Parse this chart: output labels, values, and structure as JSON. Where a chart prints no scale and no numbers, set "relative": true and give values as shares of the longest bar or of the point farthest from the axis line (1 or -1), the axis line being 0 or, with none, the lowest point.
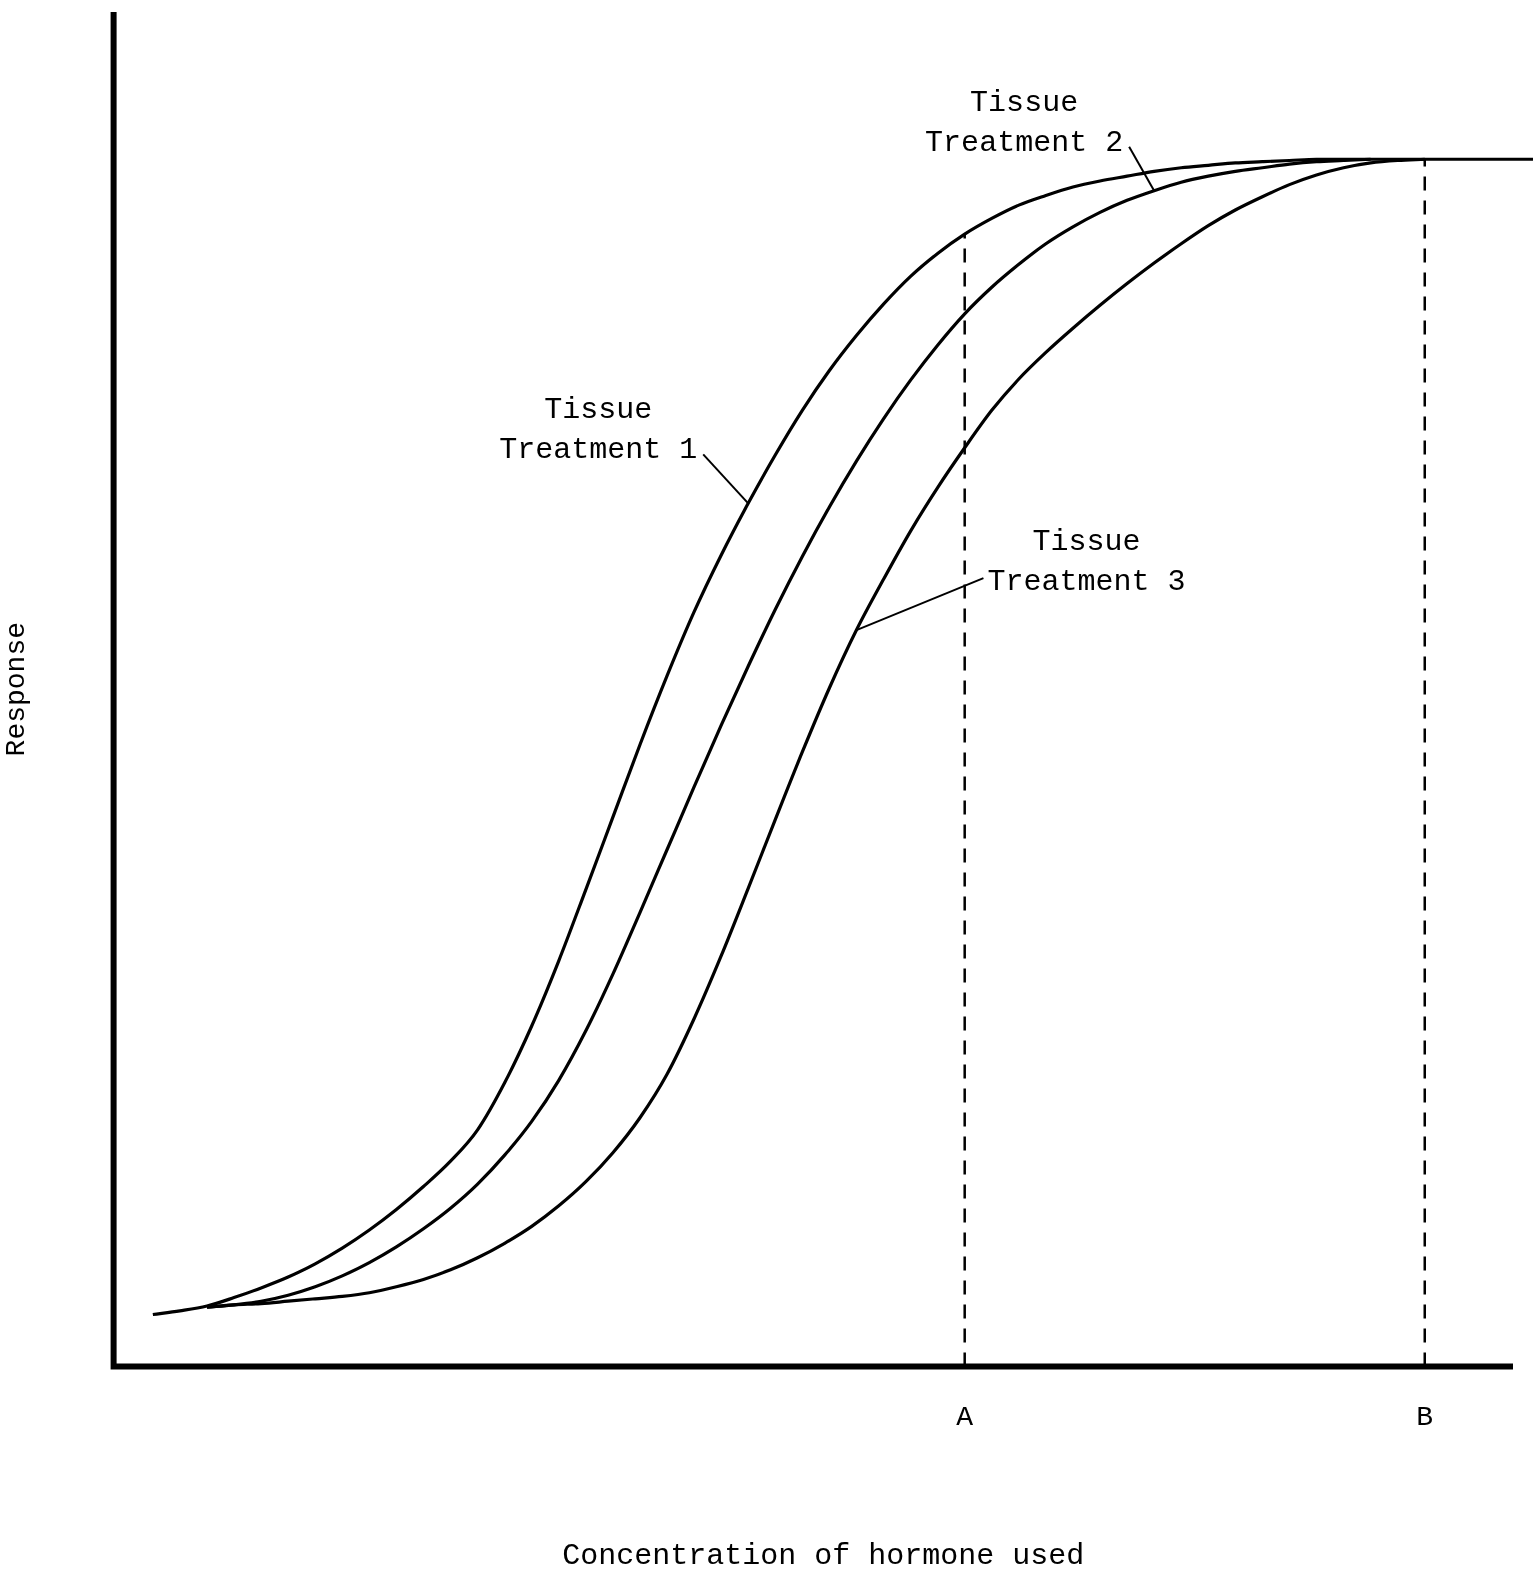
{
  "chart_data": {
    "type": "line",
    "relative": true,
    "xlabel": "Concentration of hormone used",
    "ylabel": "Response",
    "categories": [
      null,
      null,
      null,
      null,
      null,
      null,
      null,
      null,
      null,
      null,
      null,
      null,
      null,
      null,
      null,
      null,
      null,
      null,
      null,
      null,
      null,
      null,
      null,
      null,
      null,
      null,
      null,
      null,
      null,
      null,
      "A",
      null,
      null,
      null,
      null,
      null,
      null,
      null,
      null,
      null,
      null,
      null,
      null,
      null,
      null,
      null,
      null,
      "B",
      null,
      null,
      null,
      null
    ],
    "series": [
      {
        "name": "Tissue Treatment 1",
        "color": "#000000",
        "values": [
          0.043,
          0.046,
          0.05,
          0.057,
          0.065,
          0.074,
          0.085,
          0.098,
          0.113,
          0.13,
          0.149,
          0.17,
          0.196,
          0.235,
          0.282,
          0.336,
          0.395,
          0.455,
          0.515,
          0.572,
          0.625,
          0.672,
          0.715,
          0.755,
          0.792,
          0.825,
          0.854,
          0.88,
          0.903,
          0.922,
          0.938,
          0.951,
          0.962,
          0.97,
          0.977,
          0.982,
          0.986,
          0.99,
          0.993,
          0.995,
          0.997,
          0.998,
          0.999,
          1,
          1,
          1,
          1,
          1,
          1,
          1,
          1,
          1
        ]
      },
      {
        "name": "Tissue Treatment 2",
        "color": "#000000",
        "values": [
          null,
          null,
          0.049,
          0.051,
          0.054,
          0.059,
          0.066,
          0.075,
          0.086,
          0.099,
          0.114,
          0.131,
          0.151,
          0.175,
          0.203,
          0.237,
          0.278,
          0.325,
          0.376,
          0.428,
          0.48,
          0.531,
          0.58,
          0.627,
          0.671,
          0.712,
          0.75,
          0.785,
          0.817,
          0.846,
          0.872,
          0.894,
          0.913,
          0.93,
          0.944,
          0.956,
          0.966,
          0.974,
          0.981,
          0.986,
          0.99,
          0.993,
          0.996,
          0.998,
          0.999,
          1,
          null,
          null,
          null,
          null,
          null,
          null
        ]
      },
      {
        "name": "Tissue Treatment 3",
        "color": "#000000",
        "values": [
          null,
          null,
          0.049,
          0.051,
          0.052,
          0.054,
          0.056,
          0.058,
          0.061,
          0.066,
          0.072,
          0.08,
          0.09,
          0.102,
          0.116,
          0.133,
          0.153,
          0.177,
          0.206,
          0.242,
          0.288,
          0.34,
          0.396,
          0.453,
          0.509,
          0.562,
          0.61,
          0.652,
          0.692,
          0.728,
          0.761,
          0.792,
          0.818,
          0.84,
          0.86,
          0.879,
          0.897,
          0.914,
          0.93,
          0.945,
          0.958,
          0.969,
          0.979,
          0.987,
          0.993,
          0.997,
          0.999,
          1,
          null,
          null,
          null,
          null
        ]
      }
    ],
    "ref_lines": [
      {
        "axis": "x",
        "value": "A",
        "line_style": "dashed"
      },
      {
        "axis": "x",
        "value": "B",
        "line_style": "dashed"
      }
    ],
    "grid": false,
    "legend": false,
    "marker": "none",
    "line_style": "solid"
  }
}
